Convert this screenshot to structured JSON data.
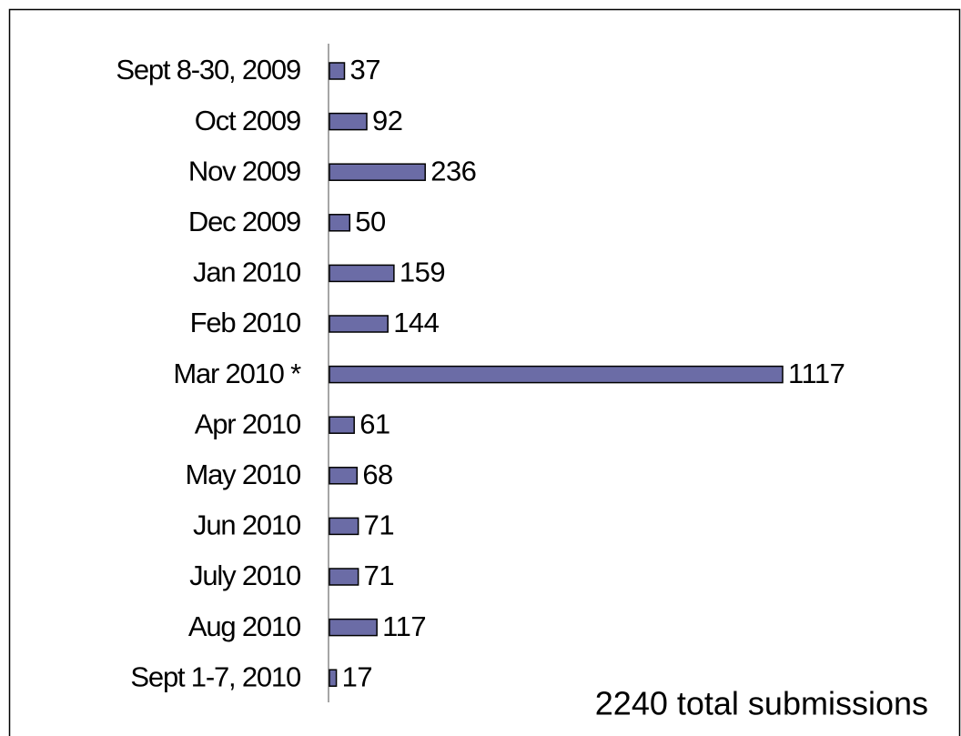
{
  "chart_data": {
    "type": "bar",
    "orientation": "horizontal",
    "categories": [
      "Sept 8-30, 2009",
      "Oct 2009",
      "Nov 2009",
      "Dec 2009",
      "Jan 2010",
      "Feb 2010",
      "Mar 2010 *",
      "Apr 2010",
      "May 2010",
      "Jun 2010",
      "July 2010",
      "Aug 2010",
      "Sept 1-7, 2010"
    ],
    "values": [
      37,
      92,
      236,
      50,
      159,
      144,
      1117,
      61,
      68,
      71,
      71,
      117,
      17
    ],
    "color": "#6b6ca6",
    "annotation": "2240 total submissions"
  }
}
